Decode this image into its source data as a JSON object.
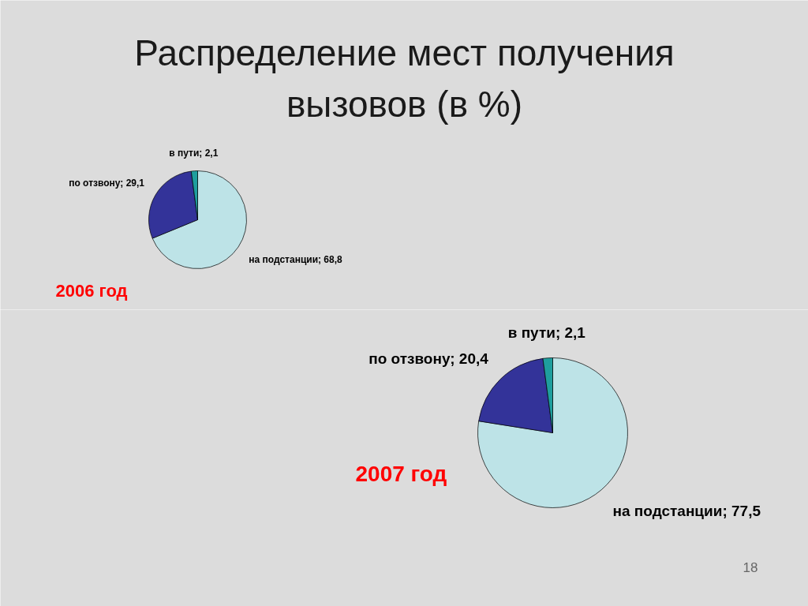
{
  "chart_data": [
    {
      "type": "pie",
      "title": "Распределение мест получения вызовов (в %)",
      "subtitle": "2006 год",
      "categories": [
        "на подстанции",
        "по отзвону",
        "в пути"
      ],
      "values": [
        68.8,
        29.1,
        2.1
      ],
      "colors": [
        "#bde3e7",
        "#333399",
        "#1f9e9e"
      ],
      "value_labels": [
        "68,8",
        "29,1",
        "2,1"
      ]
    },
    {
      "type": "pie",
      "subtitle": "2007 год",
      "categories": [
        "на подстанции",
        "по отзвону",
        "в пути"
      ],
      "values": [
        77.5,
        20.4,
        2.1
      ],
      "colors": [
        "#bde3e7",
        "#333399",
        "#1f9e9e"
      ],
      "value_labels": [
        "77,5",
        "20,4",
        "2,1"
      ],
      "annotations": [
        "18"
      ]
    }
  ]
}
